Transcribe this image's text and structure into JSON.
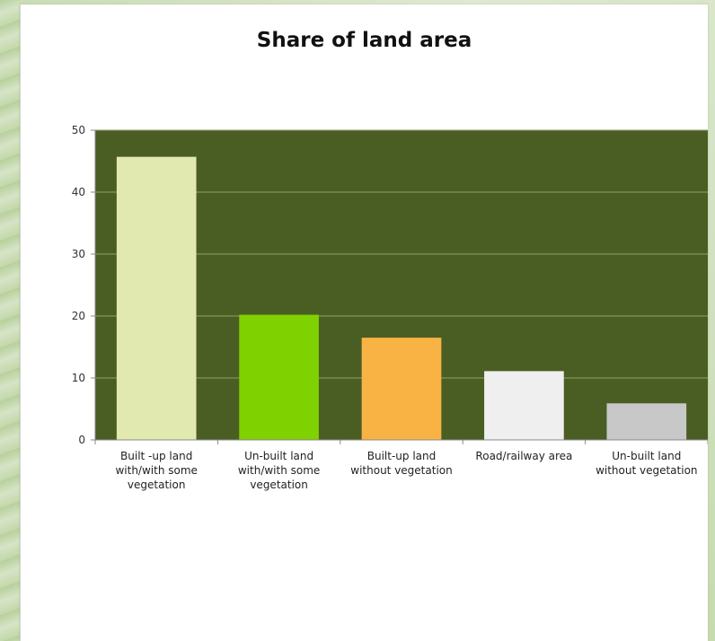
{
  "chart_data": {
    "type": "bar",
    "title": "Share of land area",
    "xlabel": "",
    "ylabel": "",
    "ylim": [
      0,
      50
    ],
    "yticks": [
      0,
      10,
      20,
      30,
      40,
      50
    ],
    "grid": true,
    "legend": "none",
    "plot_background": "#4a5e24",
    "gridline_color": "#8fa06a",
    "categories": [
      [
        "Built -up land",
        "with/with some",
        "vegetation"
      ],
      [
        "Un-built land",
        "with/with some",
        "vegetation"
      ],
      [
        "Built-up land",
        "without vegetation"
      ],
      [
        "Road/railway area"
      ],
      [
        "Un-built land",
        "without vegetation"
      ]
    ],
    "values": [
      45.7,
      20.2,
      16.5,
      11.1,
      5.9
    ],
    "colors": [
      "#e1e9b0",
      "#80d100",
      "#f9b345",
      "#efefef",
      "#c8c8c8"
    ]
  }
}
